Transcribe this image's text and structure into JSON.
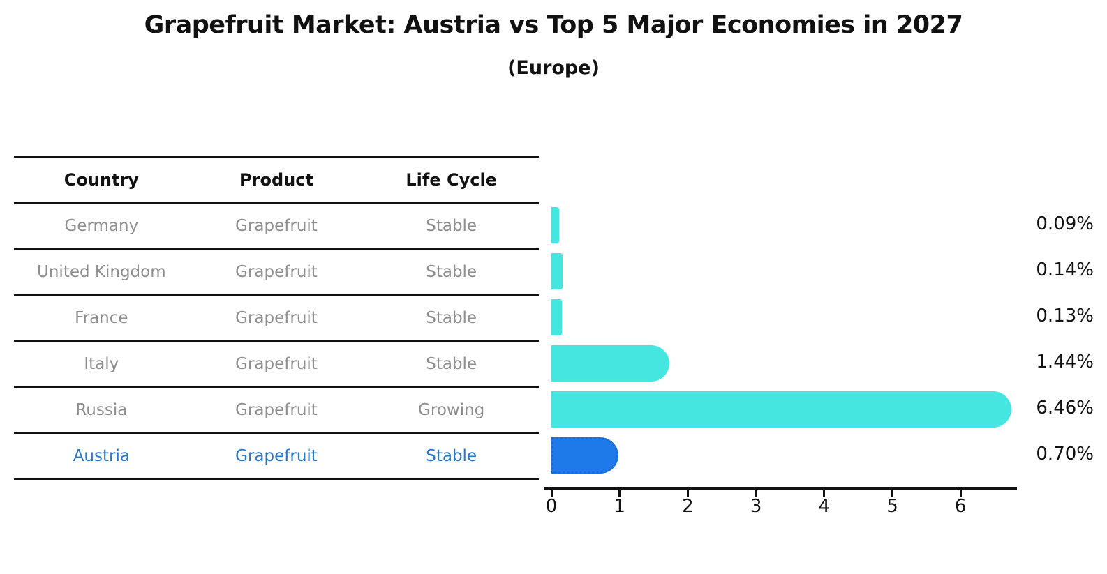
{
  "title": "Grapefruit Market: Austria vs Top 5 Major Economies in 2027",
  "subtitle": "(Europe)",
  "table": {
    "headers": [
      "Country",
      "Product",
      "Life Cycle"
    ],
    "rows": [
      {
        "country": "Germany",
        "product": "Grapefruit",
        "life_cycle": "Stable"
      },
      {
        "country": "United Kingdom",
        "product": "Grapefruit",
        "life_cycle": "Stable"
      },
      {
        "country": "France",
        "product": "Grapefruit",
        "life_cycle": "Stable"
      },
      {
        "country": "Italy",
        "product": "Grapefruit",
        "life_cycle": "Stable"
      },
      {
        "country": "Russia",
        "product": "Grapefruit",
        "life_cycle": "Growing"
      },
      {
        "country": "Austria",
        "product": "Grapefruit",
        "life_cycle": "Stable"
      }
    ],
    "highlight_row": "Austria"
  },
  "chart_data": {
    "type": "bar",
    "orientation": "horizontal",
    "title": "Grapefruit Market: Austria vs Top 5 Major Economies in 2027",
    "subtitle": "(Europe)",
    "categories": [
      "Germany",
      "United Kingdom",
      "France",
      "Italy",
      "Russia",
      "Austria"
    ],
    "values": [
      0.09,
      0.14,
      0.13,
      1.44,
      6.46,
      0.7
    ],
    "value_labels": [
      "0.09%",
      "0.14%",
      "0.13%",
      "1.44%",
      "6.46%",
      "0.70%"
    ],
    "xticks": [
      "0",
      "1",
      "2",
      "3",
      "4",
      "5",
      "6"
    ],
    "xlim": [
      0,
      6.8
    ],
    "grid": false,
    "legend": false,
    "highlight_index": 5
  },
  "colors": {
    "bar": "#45E5E0",
    "highlight_bar": "#1E7AE8",
    "highlight_border": "#1B6BD6",
    "highlight_text": "#2878C8",
    "row_text": "#8e8e8e",
    "header_text": "#111111",
    "value_text": "#111111",
    "line": "#111111"
  }
}
